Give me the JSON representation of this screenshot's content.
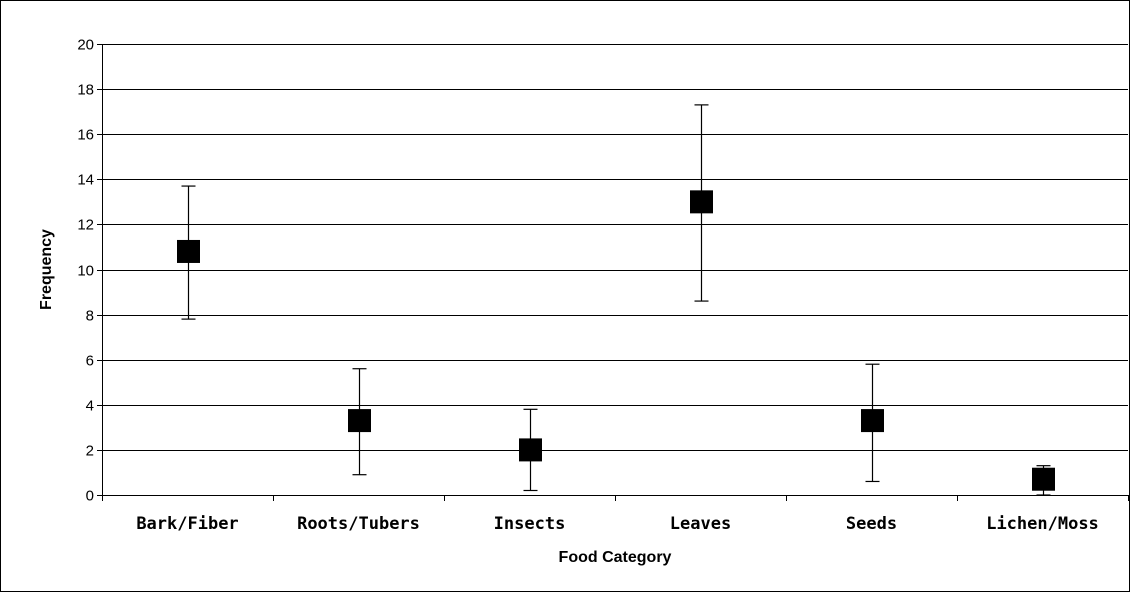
{
  "chart_data": {
    "type": "scatter",
    "title": "",
    "xlabel": "Food Category",
    "ylabel": "Frequency",
    "categories": [
      "Bark/Fiber",
      "Roots/Tubers",
      "Insects",
      "Leaves",
      "Seeds",
      "Lichen/Moss"
    ],
    "values": [
      10.8,
      3.3,
      2.0,
      13.0,
      3.3,
      0.7
    ],
    "error_low": [
      7.8,
      0.9,
      0.2,
      8.6,
      0.6,
      0.0
    ],
    "error_high": [
      13.7,
      5.6,
      3.8,
      17.3,
      5.8,
      1.3
    ],
    "ylim": [
      0,
      20
    ],
    "yticks": [
      "0",
      "2",
      "4",
      "6",
      "8",
      "10",
      "12",
      "14",
      "16",
      "18",
      "20"
    ],
    "ytick_values": [
      0,
      2,
      4,
      6,
      8,
      10,
      12,
      14,
      16,
      18,
      20
    ],
    "grid": true,
    "legend": "none",
    "marker": "square",
    "marker_color": "#000000"
  }
}
